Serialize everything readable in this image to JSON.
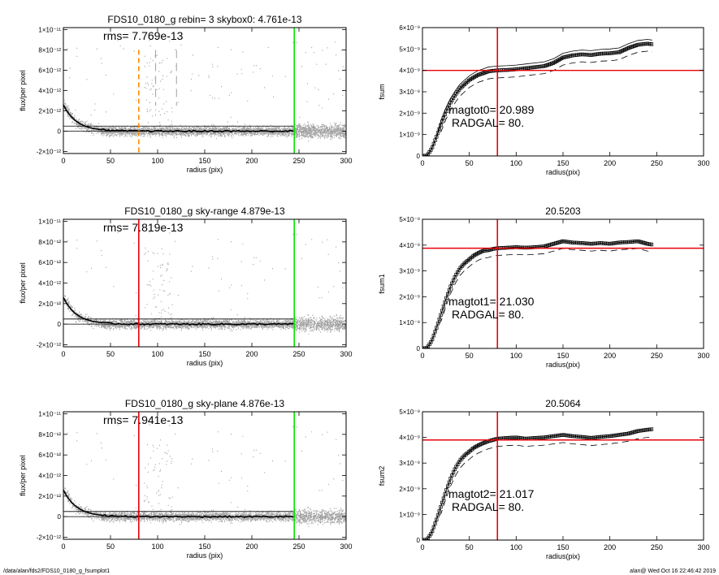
{
  "footer": {
    "left": "/data/alan/fds2/FDS10_0180_g_fsumplot1",
    "right": "alan@  Wed Oct 16 22:46:42 2019"
  },
  "colors": {
    "red": "#e8000b",
    "green": "#00e600",
    "orange": "#ff8c00",
    "scatter": "#a0a0a0",
    "scatter_dark": "#555555"
  },
  "chart_data": [
    {
      "type": "scatter",
      "title": "FDS10_0180_g rebin= 3    skybox0:  4.761e-13",
      "annotation": "rms= 7.769e-13",
      "xlabel": "radius (pix)",
      "ylabel": "flux/per pixel",
      "xlim": [
        0,
        300
      ],
      "ylim": [
        -2.2e-12,
        1.02e-11
      ],
      "xticks": [
        0,
        50,
        100,
        150,
        200,
        250,
        300
      ],
      "yticks": [
        -2e-12,
        0,
        2e-12,
        4e-12,
        6e-12,
        8e-12,
        1e-11
      ],
      "ytick_labels": [
        "-2×10⁻¹²",
        "0",
        "2×10⁻¹²",
        "4×10⁻¹²",
        "6×10⁻¹²",
        "8×10⁻¹²",
        "1×10⁻¹¹"
      ],
      "vlines": [
        {
          "x": 80,
          "color": "orange",
          "style": "dashed"
        },
        {
          "x": 98,
          "color": "gray",
          "style": "dashed"
        },
        {
          "x": 120,
          "color": "gray",
          "style": "dashed"
        },
        {
          "x": 245,
          "color": "green",
          "style": "solid"
        }
      ],
      "hlines": [
        5e-13,
        0
      ],
      "variant": "rebin"
    },
    {
      "type": "line",
      "title": "",
      "annotation": [
        "magtot0=  20.989",
        "RADGAL=     80."
      ],
      "xlabel": "radius(pix)",
      "ylabel": "fsum",
      "xlim": [
        0,
        300
      ],
      "ylim": [
        0,
        6e-09
      ],
      "xticks": [
        0,
        50,
        100,
        150,
        200,
        250,
        300
      ],
      "yticks": [
        0,
        1e-09,
        2e-09,
        3e-09,
        4e-09,
        5e-09,
        6e-09
      ],
      "ytick_labels": [
        "0",
        "1×10⁻⁹",
        "2×10⁻⁹",
        "3×10⁻⁹",
        "4×10⁻⁹",
        "5×10⁻⁹",
        "6×10⁻⁹"
      ],
      "vline": 80,
      "hline": 4e-09,
      "curve": [
        [
          0,
          0
        ],
        [
          5,
          2e-11
        ],
        [
          10,
          3.5e-10
        ],
        [
          15,
          9e-10
        ],
        [
          20,
          1.5e-09
        ],
        [
          25,
          2.05e-09
        ],
        [
          30,
          2.5e-09
        ],
        [
          35,
          2.85e-09
        ],
        [
          40,
          3.15e-09
        ],
        [
          45,
          3.35e-09
        ],
        [
          50,
          3.55e-09
        ],
        [
          55,
          3.68e-09
        ],
        [
          60,
          3.8e-09
        ],
        [
          65,
          3.87e-09
        ],
        [
          70,
          3.95e-09
        ],
        [
          75,
          3.98e-09
        ],
        [
          80,
          4e-09
        ],
        [
          90,
          4.02e-09
        ],
        [
          100,
          4.05e-09
        ],
        [
          110,
          4.1e-09
        ],
        [
          120,
          4.15e-09
        ],
        [
          130,
          4.2e-09
        ],
        [
          140,
          4.35e-09
        ],
        [
          150,
          4.6e-09
        ],
        [
          160,
          4.7e-09
        ],
        [
          170,
          4.75e-09
        ],
        [
          180,
          4.72e-09
        ],
        [
          190,
          4.78e-09
        ],
        [
          200,
          4.8e-09
        ],
        [
          210,
          4.85e-09
        ],
        [
          220,
          5.05e-09
        ],
        [
          230,
          5.2e-09
        ],
        [
          240,
          5.25e-09
        ],
        [
          245,
          5.22e-09
        ]
      ],
      "upper_offset": 2e-10,
      "lower_offset": -3.5e-10
    },
    {
      "type": "scatter",
      "title": "FDS10_0180_g sky-range  4.879e-13",
      "annotation": "rms= 7.819e-13",
      "xlabel": "radius (pix)",
      "ylabel": "flux/per pixel",
      "xlim": [
        0,
        300
      ],
      "ylim": [
        -2.2e-12,
        1.02e-11
      ],
      "xticks": [
        0,
        50,
        100,
        150,
        200,
        250,
        300
      ],
      "yticks": [
        -2e-12,
        0,
        2e-12,
        4e-12,
        6e-12,
        8e-12,
        1e-11
      ],
      "ytick_labels": [
        "-2×10⁻¹²",
        "0",
        "2×10⁻¹²",
        "4×10⁻¹²",
        "6×10⁻¹²",
        "8×10⁻¹²",
        "1×10⁻¹¹"
      ],
      "vlines": [
        {
          "x": 80,
          "color": "red",
          "style": "solid"
        },
        {
          "x": 245,
          "color": "green",
          "style": "solid"
        }
      ],
      "hlines": [
        5e-13,
        0
      ],
      "variant": "range"
    },
    {
      "type": "line",
      "title": "20.5203",
      "annotation": [
        "magtot1=  21.030",
        "RADGAL=     80."
      ],
      "xlabel": "radius(pix)",
      "ylabel": "fsum1",
      "xlim": [
        0,
        300
      ],
      "ylim": [
        0,
        5e-09
      ],
      "xticks": [
        0,
        50,
        100,
        150,
        200,
        250,
        300
      ],
      "yticks": [
        0,
        1e-09,
        2e-09,
        3e-09,
        4e-09,
        5e-09
      ],
      "ytick_labels": [
        "0",
        "1×10⁻⁹",
        "2×10⁻⁹",
        "3×10⁻⁹",
        "4×10⁻⁹",
        "5×10⁻⁹"
      ],
      "vline": 80,
      "hline": 3.88e-09,
      "curve": [
        [
          0,
          0
        ],
        [
          5,
          2e-11
        ],
        [
          10,
          3e-10
        ],
        [
          15,
          8e-10
        ],
        [
          20,
          1.35e-09
        ],
        [
          25,
          1.9e-09
        ],
        [
          30,
          2.4e-09
        ],
        [
          35,
          2.8e-09
        ],
        [
          40,
          3.1e-09
        ],
        [
          45,
          3.3e-09
        ],
        [
          50,
          3.45e-09
        ],
        [
          55,
          3.6e-09
        ],
        [
          60,
          3.7e-09
        ],
        [
          65,
          3.78e-09
        ],
        [
          70,
          3.8e-09
        ],
        [
          75,
          3.85e-09
        ],
        [
          80,
          3.88e-09
        ],
        [
          90,
          3.9e-09
        ],
        [
          100,
          3.92e-09
        ],
        [
          110,
          3.9e-09
        ],
        [
          120,
          3.92e-09
        ],
        [
          130,
          3.95e-09
        ],
        [
          140,
          4.05e-09
        ],
        [
          150,
          4.15e-09
        ],
        [
          160,
          4.1e-09
        ],
        [
          170,
          4.08e-09
        ],
        [
          180,
          4.05e-09
        ],
        [
          190,
          4.08e-09
        ],
        [
          200,
          4.05e-09
        ],
        [
          210,
          4.1e-09
        ],
        [
          220,
          4.12e-09
        ],
        [
          230,
          4.15e-09
        ],
        [
          240,
          4.05e-09
        ],
        [
          245,
          4.02e-09
        ]
      ],
      "upper_offset": 0,
      "lower_offset": -2.8e-10
    },
    {
      "type": "scatter",
      "title": "FDS10_0180_g sky-plane  4.876e-13",
      "annotation": "rms= 7.941e-13",
      "xlabel": "radius (pix)",
      "ylabel": "flux/per pixel",
      "xlim": [
        0,
        300
      ],
      "ylim": [
        -2.2e-12,
        1.02e-11
      ],
      "xticks": [
        0,
        50,
        100,
        150,
        200,
        250,
        300
      ],
      "yticks": [
        -2e-12,
        0,
        2e-12,
        4e-12,
        6e-12,
        8e-12,
        1e-11
      ],
      "ytick_labels": [
        "-2×10⁻¹²",
        "0",
        "2×10⁻¹²",
        "4×10⁻¹²",
        "6×10⁻¹²",
        "8×10⁻¹²",
        "1×10⁻¹¹"
      ],
      "vlines": [
        {
          "x": 80,
          "color": "red",
          "style": "solid"
        },
        {
          "x": 245,
          "color": "green",
          "style": "solid"
        }
      ],
      "hlines": [
        5e-13,
        0
      ],
      "variant": "plane"
    },
    {
      "type": "line",
      "title": "20.5064",
      "annotation": [
        "magtot2=  21.017",
        "RADGAL=     80."
      ],
      "xlabel": "radius(pix)",
      "ylabel": "fsum2",
      "xlim": [
        0,
        300
      ],
      "ylim": [
        0,
        5e-09
      ],
      "xticks": [
        0,
        50,
        100,
        150,
        200,
        250,
        300
      ],
      "yticks": [
        0,
        1e-09,
        2e-09,
        3e-09,
        4e-09,
        5e-09
      ],
      "ytick_labels": [
        "0",
        "1×10⁻⁹",
        "2×10⁻⁹",
        "3×10⁻⁹",
        "4×10⁻⁹",
        "5×10⁻⁹"
      ],
      "vline": 80,
      "hline": 3.9e-09,
      "curve": [
        [
          0,
          0
        ],
        [
          5,
          2e-11
        ],
        [
          10,
          3e-10
        ],
        [
          15,
          8e-10
        ],
        [
          20,
          1.35e-09
        ],
        [
          25,
          1.9e-09
        ],
        [
          30,
          2.4e-09
        ],
        [
          35,
          2.8e-09
        ],
        [
          40,
          3.1e-09
        ],
        [
          45,
          3.3e-09
        ],
        [
          50,
          3.45e-09
        ],
        [
          55,
          3.6e-09
        ],
        [
          60,
          3.7e-09
        ],
        [
          65,
          3.78e-09
        ],
        [
          70,
          3.85e-09
        ],
        [
          75,
          3.9e-09
        ],
        [
          80,
          3.95e-09
        ],
        [
          90,
          3.98e-09
        ],
        [
          100,
          4e-09
        ],
        [
          110,
          3.95e-09
        ],
        [
          120,
          3.98e-09
        ],
        [
          130,
          4e-09
        ],
        [
          140,
          4.05e-09
        ],
        [
          150,
          4.1e-09
        ],
        [
          160,
          4.05e-09
        ],
        [
          170,
          4.02e-09
        ],
        [
          180,
          3.98e-09
        ],
        [
          190,
          4.02e-09
        ],
        [
          200,
          4.05e-09
        ],
        [
          210,
          4.1e-09
        ],
        [
          220,
          4.15e-09
        ],
        [
          230,
          4.25e-09
        ],
        [
          240,
          4.3e-09
        ],
        [
          245,
          4.32e-09
        ]
      ],
      "upper_offset": 0,
      "lower_offset": -3e-10
    }
  ]
}
